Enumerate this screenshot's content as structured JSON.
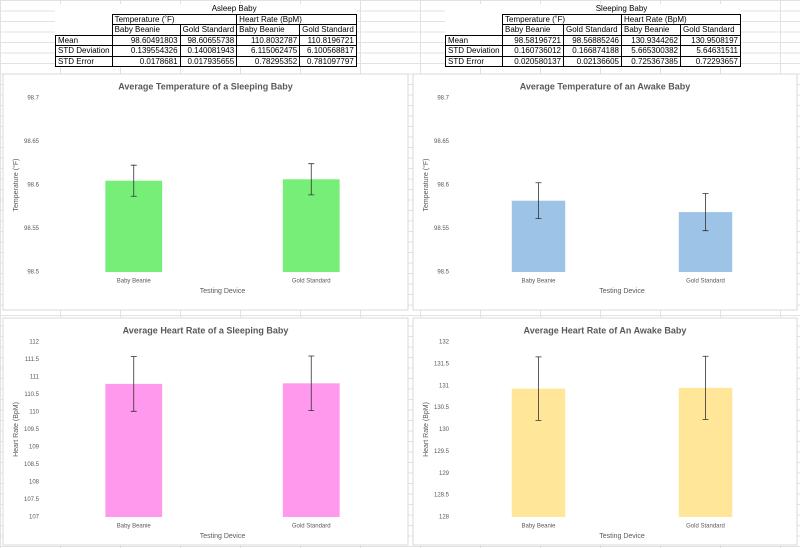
{
  "tables": [
    {
      "title": "Asleep Baby",
      "groups": [
        "Temperature (˚F)",
        "Heart Rate (BpM)"
      ],
      "columns": [
        "Baby Beanie",
        "Gold Standard",
        "Baby Beanie",
        "Gold Standard"
      ],
      "rows": [
        [
          "Mean",
          "98.60491803",
          "98.60655738",
          "110.8032787",
          "110.8196721"
        ],
        [
          "STD Deviation",
          "0.139554326",
          "0.140081943",
          "6.115062475",
          "6.100568817"
        ],
        [
          "STD Error",
          "0.0178681",
          "0.017935655",
          "0.78295352",
          "0.781097797"
        ]
      ]
    },
    {
      "title": "Sleeping Baby",
      "groups": [
        "Temperature (˚F)",
        "Heart Rate (BpM)"
      ],
      "columns": [
        "Baby Beanie",
        "Gold Standard",
        "Baby Beanie",
        "Gold Standard"
      ],
      "rows": [
        [
          "Mean",
          "98.58196721",
          "98.56885246",
          "130.9344262",
          "130.9508197"
        ],
        [
          "STD Deviation",
          "0.160736012",
          "0.166874188",
          "5.665300382",
          "5.64631511"
        ],
        [
          "STD Error",
          "0.020580137",
          "0.02136605",
          "0.725367385",
          "0.72293657"
        ]
      ]
    }
  ],
  "chart_data": [
    {
      "type": "bar",
      "title": "Average Temperature of a Sleeping Baby",
      "x_label": "Testing Device",
      "y_label": "Temperature (°F)",
      "categories": [
        "Baby Beanie",
        "Gold Standard"
      ],
      "values": [
        98.60491803,
        98.60655738
      ],
      "errors": [
        0.0178681,
        0.017935655
      ],
      "color": "#77ee77",
      "ylim": [
        98.5,
        98.7
      ],
      "yticks": [
        98.5,
        98.55,
        98.6,
        98.65,
        98.7
      ]
    },
    {
      "type": "bar",
      "title": "Average Temperature of an Awake Baby",
      "x_label": "Testing Device",
      "y_label": "Temperature (°F)",
      "categories": [
        "Baby Beanie",
        "Gold Standard"
      ],
      "values": [
        98.58196721,
        98.56885246
      ],
      "errors": [
        0.020580137,
        0.02136605
      ],
      "color": "#9dc3e6",
      "ylim": [
        98.5,
        98.7
      ],
      "yticks": [
        98.5,
        98.55,
        98.6,
        98.65,
        98.7
      ]
    },
    {
      "type": "bar",
      "title": "Average Heart Rate of a Sleeping Baby",
      "x_label": "Testing Device",
      "y_label": "Heart Rate (BpM)",
      "categories": [
        "Baby Beanie",
        "Gold Standard"
      ],
      "values": [
        110.8032787,
        110.8196721
      ],
      "errors": [
        0.78295352,
        0.781097797
      ],
      "color": "#ff99ee",
      "ylim": [
        107,
        112
      ],
      "yticks": [
        107,
        107.5,
        108,
        108.5,
        109,
        109.5,
        110,
        110.5,
        111,
        111.5,
        112
      ]
    },
    {
      "type": "bar",
      "title": "Average Heart Rate of An Awake Baby",
      "x_label": "Testing Device",
      "y_label": "Heart Rate (BpM)",
      "categories": [
        "Baby Beanie",
        "Gold Standard"
      ],
      "values": [
        130.9344262,
        130.9508197
      ],
      "errors": [
        0.725367385,
        0.72293657
      ],
      "color": "#ffe699",
      "ylim": [
        128,
        132
      ],
      "yticks": [
        128,
        128.5,
        129,
        129.5,
        130,
        130.5,
        131,
        131.5,
        132
      ]
    }
  ]
}
